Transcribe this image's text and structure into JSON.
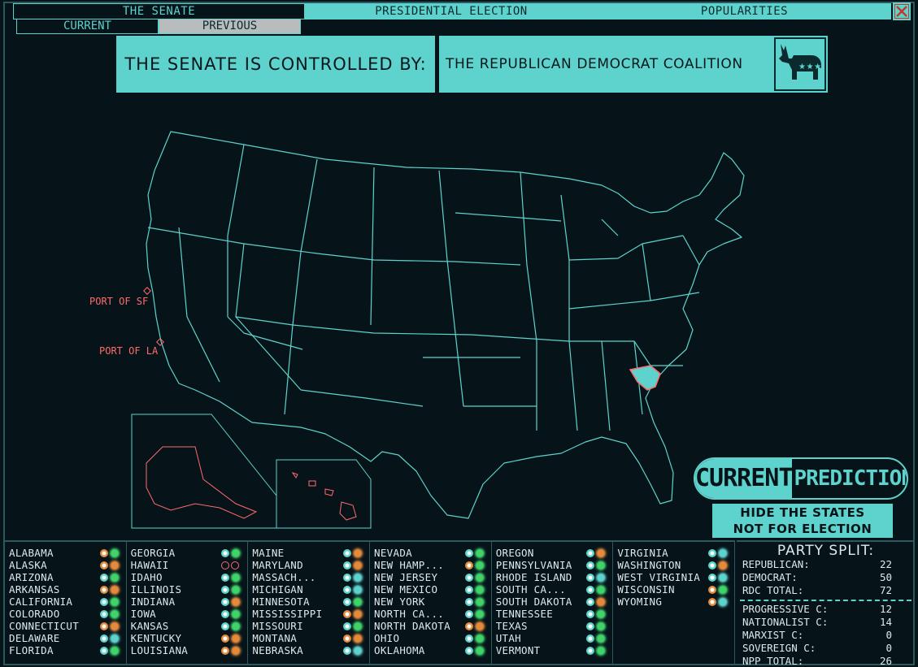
{
  "tabs": [
    {
      "label": "THE SENATE",
      "active": true
    },
    {
      "label": "PRESIDENTIAL ELECTION",
      "active": false
    },
    {
      "label": "POPULARITIES",
      "active": false
    }
  ],
  "subtabs": [
    {
      "label": "CURRENT",
      "active": true
    },
    {
      "label": "PREVIOUS",
      "active": false
    }
  ],
  "banner": {
    "prefix": "THE SENATE IS CONTROLLED BY:",
    "party": "THE REPUBLICAN DEMOCRAT COALITION",
    "logo_icon": "donkey-party-icon",
    "logo_stars": "★★★"
  },
  "map": {
    "ports": [
      "PORT OF SF",
      "PORT OF LA"
    ],
    "highlight_state_color": "#5ed3cd",
    "port_color": "#ff6b6b"
  },
  "prediction": {
    "current": "CURRENT",
    "prediction": "PREDICTION"
  },
  "hide_button": {
    "line1": "HIDE THE STATES",
    "line2": "NOT FOR ELECTION"
  },
  "colors": {
    "accent": "#5ed3cd",
    "background": "#06141a",
    "port": "#ff6b6b",
    "green": "#3fd36a",
    "orange": "#e48a3a",
    "teal": "#5ed3cd"
  },
  "states": [
    [
      {
        "name": "ALABAMA",
        "a": "orange",
        "b": "green"
      },
      {
        "name": "ALASKA",
        "a": "orange",
        "b": "orange"
      },
      {
        "name": "ARIZONA",
        "a": "teal",
        "b": "green"
      },
      {
        "name": "ARKANSAS",
        "a": "orange",
        "b": "orange"
      },
      {
        "name": "CALIFORNIA",
        "a": "teal",
        "b": "green"
      },
      {
        "name": "COLORADO",
        "a": "teal",
        "b": "green"
      },
      {
        "name": "CONNECTICUT",
        "a": "orange",
        "b": "orange"
      },
      {
        "name": "DELAWARE",
        "a": "teal",
        "b": "teal"
      },
      {
        "name": "FLORIDA",
        "a": "teal",
        "b": "green"
      }
    ],
    [
      {
        "name": "GEORGIA",
        "a": "teal",
        "b": "green"
      },
      {
        "name": "HAWAII",
        "a": "none",
        "b": "none"
      },
      {
        "name": "IDAHO",
        "a": "teal",
        "b": "green"
      },
      {
        "name": "ILLINOIS",
        "a": "teal",
        "b": "green"
      },
      {
        "name": "INDIANA",
        "a": "teal",
        "b": "orange"
      },
      {
        "name": "IOWA",
        "a": "teal",
        "b": "green"
      },
      {
        "name": "KANSAS",
        "a": "teal",
        "b": "green"
      },
      {
        "name": "KENTUCKY",
        "a": "orange",
        "b": "orange"
      },
      {
        "name": "LOUISIANA",
        "a": "orange",
        "b": "orange"
      }
    ],
    [
      {
        "name": "MAINE",
        "a": "teal",
        "b": "orange"
      },
      {
        "name": "MARYLAND",
        "a": "teal",
        "b": "orange"
      },
      {
        "name": "MASSACH...",
        "a": "teal",
        "b": "teal"
      },
      {
        "name": "MICHIGAN",
        "a": "teal",
        "b": "teal"
      },
      {
        "name": "MINNESOTA",
        "a": "teal",
        "b": "green"
      },
      {
        "name": "MISSISSIPPI",
        "a": "orange",
        "b": "orange"
      },
      {
        "name": "MISSOURI",
        "a": "teal",
        "b": "green"
      },
      {
        "name": "MONTANA",
        "a": "orange",
        "b": "orange"
      },
      {
        "name": "NEBRASKA",
        "a": "teal",
        "b": "teal"
      }
    ],
    [
      {
        "name": "NEVADA",
        "a": "teal",
        "b": "green"
      },
      {
        "name": "NEW HAMP...",
        "a": "orange",
        "b": "green"
      },
      {
        "name": "NEW JERSEY",
        "a": "teal",
        "b": "green"
      },
      {
        "name": "NEW MEXICO",
        "a": "teal",
        "b": "green"
      },
      {
        "name": "NEW YORK",
        "a": "teal",
        "b": "green"
      },
      {
        "name": "NORTH CA...",
        "a": "teal",
        "b": "green"
      },
      {
        "name": "NORTH DAKOTA",
        "a": "orange",
        "b": "orange"
      },
      {
        "name": "OHIO",
        "a": "teal",
        "b": "green"
      },
      {
        "name": "OKLAHOMA",
        "a": "teal",
        "b": "green"
      }
    ],
    [
      {
        "name": "OREGON",
        "a": "teal",
        "b": "orange"
      },
      {
        "name": "PENNSYLVANIA",
        "a": "teal",
        "b": "green"
      },
      {
        "name": "RHODE ISLAND",
        "a": "teal",
        "b": "teal"
      },
      {
        "name": "SOUTH CA...",
        "a": "teal",
        "b": "green"
      },
      {
        "name": "SOUTH DAKOTA",
        "a": "teal",
        "b": "orange"
      },
      {
        "name": "TENNESSEE",
        "a": "teal",
        "b": "green"
      },
      {
        "name": "TEXAS",
        "a": "teal",
        "b": "green"
      },
      {
        "name": "UTAH",
        "a": "teal",
        "b": "green"
      },
      {
        "name": "VERMONT",
        "a": "teal",
        "b": "green"
      }
    ],
    [
      {
        "name": "VIRGINIA",
        "a": "teal",
        "b": "teal"
      },
      {
        "name": "WASHINGTON",
        "a": "teal",
        "b": "orange"
      },
      {
        "name": "WEST VIRGINIA",
        "a": "teal",
        "b": "teal"
      },
      {
        "name": "WISCONSIN",
        "a": "orange",
        "b": "green"
      },
      {
        "name": "WYOMING",
        "a": "orange",
        "b": "teal"
      }
    ]
  ],
  "party_split": {
    "title": "PARTY SPLIT:",
    "rows_top": [
      {
        "k": "REPUBLICAN:",
        "v": "22"
      },
      {
        "k": "DEMOCRAT:",
        "v": "50"
      },
      {
        "k": "RDC TOTAL:",
        "v": "72"
      }
    ],
    "rows_bottom": [
      {
        "k": "PROGRESSIVE C:",
        "v": "12"
      },
      {
        "k": "NATIONALIST C:",
        "v": "14"
      },
      {
        "k": "MARXIST C:",
        "v": "0"
      },
      {
        "k": "SOVEREIGN C:",
        "v": "0"
      },
      {
        "k": "NPP TOTAL:",
        "v": "26"
      }
    ]
  }
}
